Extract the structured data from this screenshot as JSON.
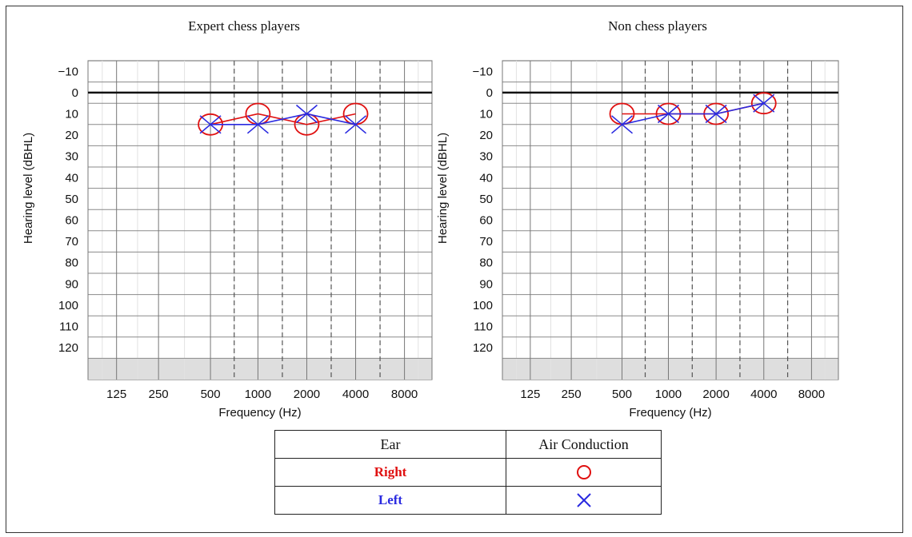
{
  "chart_data": [
    {
      "type": "line",
      "title": "Expert chess players",
      "xlabel": "Frequency (Hz)",
      "ylabel": "Hearing level (dBHL)",
      "categories": [
        "125",
        "250",
        "500",
        "1000",
        "2000",
        "4000",
        "8000"
      ],
      "yticks": [
        "-10",
        "0",
        "10",
        "20",
        "30",
        "40",
        "50",
        "60",
        "70",
        "80",
        "90",
        "100",
        "110",
        "120"
      ],
      "ylim": [
        -10,
        125
      ],
      "y_inverted": true,
      "series": [
        {
          "name": "Right",
          "marker": "circle",
          "color": "#e01010",
          "x": [
            "500",
            "1000",
            "2000",
            "4000"
          ],
          "values": [
            15,
            10,
            15,
            10
          ]
        },
        {
          "name": "Left",
          "marker": "x",
          "color": "#2a2ae0",
          "x": [
            "500",
            "1000",
            "2000",
            "4000"
          ],
          "values": [
            15,
            15,
            10,
            15
          ]
        }
      ]
    },
    {
      "type": "line",
      "title": "Non chess players",
      "xlabel": "Frequency (Hz)",
      "ylabel": "Hearing level (dBHL)",
      "categories": [
        "125",
        "250",
        "500",
        "1000",
        "2000",
        "4000",
        "8000"
      ],
      "yticks": [
        "-10",
        "0",
        "10",
        "20",
        "30",
        "40",
        "50",
        "60",
        "70",
        "80",
        "90",
        "100",
        "110",
        "120"
      ],
      "ylim": [
        -10,
        125
      ],
      "y_inverted": true,
      "series": [
        {
          "name": "Right",
          "marker": "circle",
          "color": "#e01010",
          "x": [
            "500",
            "1000",
            "2000",
            "4000"
          ],
          "values": [
            10,
            10,
            10,
            5
          ]
        },
        {
          "name": "Left",
          "marker": "x",
          "color": "#2a2ae0",
          "x": [
            "500",
            "1000",
            "2000",
            "4000"
          ],
          "values": [
            15,
            10,
            10,
            5
          ]
        }
      ]
    }
  ],
  "legend": {
    "header_ear": "Ear",
    "header_conduction": "Air Conduction",
    "rows": [
      {
        "label": "Right",
        "color": "#e01010",
        "symbol": "circle"
      },
      {
        "label": "Left",
        "color": "#2a2ae0",
        "symbol": "x"
      }
    ]
  }
}
